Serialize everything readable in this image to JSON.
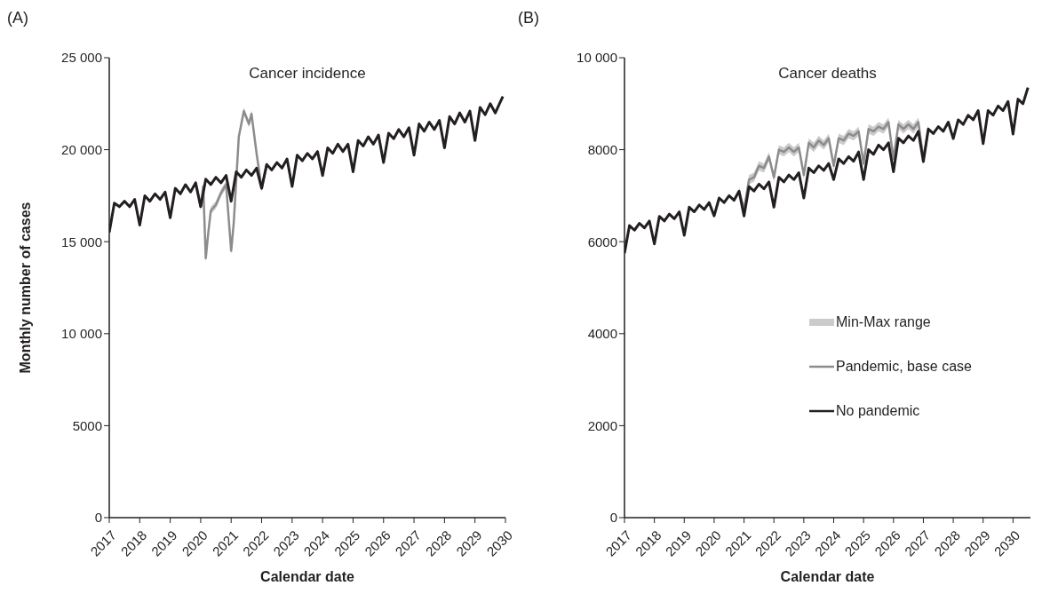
{
  "chart_data": [
    {
      "type": "line",
      "title": "Cancer incidence",
      "annotations": [
        "(A)"
      ],
      "xlabel": "Calendar date",
      "ylabel": "Monthly number of cases",
      "xlim": [
        "2017-01",
        "2030-01"
      ],
      "xticks": [
        "2017",
        "2018",
        "2019",
        "2020",
        "2021",
        "2022",
        "2023",
        "2024",
        "2025",
        "2026",
        "2027",
        "2028",
        "2029",
        "2030"
      ],
      "ylim": [
        0,
        25000
      ],
      "yticks": [
        0,
        {
          "value": 5000,
          "label": "5000"
        },
        {
          "value": 10000,
          "label": "10 000"
        },
        {
          "value": 15000,
          "label": "15 000"
        },
        {
          "value": 20000,
          "label": "20 000"
        },
        {
          "value": 25000,
          "label": "25 000"
        }
      ],
      "grid": false,
      "legend": false,
      "line_style": "solid",
      "series": [
        {
          "color": "#8c8c8c",
          "x": [
            "2019-11",
            "2020-01",
            "2020-02",
            "2020-03",
            "2020-04",
            "2020-05",
            "2020-07",
            "2020-09",
            "2020-11",
            "2021-01",
            "2021-02",
            "2021-04",
            "2021-06",
            "2021-08",
            "2021-09",
            "2021-11",
            "2022-01",
            "2022-03"
          ],
          "values": [
            18200,
            16900,
            18000,
            14100,
            15500,
            16700,
            17000,
            17650,
            18100,
            14500,
            16000,
            20700,
            22100,
            21400,
            21950,
            19800,
            17900,
            19200
          ],
          "lower": [
            18000,
            16700,
            17800,
            13900,
            15300,
            16500,
            16800,
            17450,
            17900,
            14300,
            15800,
            20500,
            21900,
            21200,
            21750,
            19600,
            17700,
            19000
          ],
          "upper": [
            18400,
            17100,
            18200,
            14300,
            15700,
            16900,
            17200,
            17850,
            18300,
            14700,
            16200,
            20900,
            22300,
            21600,
            22150,
            20000,
            18100,
            19400
          ]
        },
        {
          "color": "#231f20",
          "x": [
            "2017-01",
            "2017-03",
            "2017-05",
            "2017-07",
            "2017-09",
            "2017-11",
            "2018-01",
            "2018-03",
            "2018-05",
            "2018-07",
            "2018-09",
            "2018-11",
            "2019-01",
            "2019-03",
            "2019-05",
            "2019-07",
            "2019-09",
            "2019-11",
            "2020-01",
            "2020-03",
            "2020-05",
            "2020-07",
            "2020-09",
            "2020-11",
            "2021-01",
            "2021-03",
            "2021-05",
            "2021-07",
            "2021-09",
            "2021-11",
            "2022-01",
            "2022-03",
            "2022-05",
            "2022-07",
            "2022-09",
            "2022-11",
            "2023-01",
            "2023-03",
            "2023-05",
            "2023-07",
            "2023-09",
            "2023-11",
            "2024-01",
            "2024-03",
            "2024-05",
            "2024-07",
            "2024-09",
            "2024-11",
            "2025-01",
            "2025-03",
            "2025-05",
            "2025-07",
            "2025-09",
            "2025-11",
            "2026-01",
            "2026-03",
            "2026-05",
            "2026-07",
            "2026-09",
            "2026-11",
            "2027-01",
            "2027-03",
            "2027-05",
            "2027-07",
            "2027-09",
            "2027-11",
            "2028-01",
            "2028-03",
            "2028-05",
            "2028-07",
            "2028-09",
            "2028-11",
            "2029-01",
            "2029-03",
            "2029-05",
            "2029-07",
            "2029-09",
            "2029-11",
            "2029-12"
          ],
          "values": [
            15500,
            17100,
            16900,
            17200,
            16900,
            17300,
            15900,
            17500,
            17200,
            17600,
            17300,
            17700,
            16300,
            17900,
            17600,
            18100,
            17700,
            18200,
            16900,
            18400,
            18100,
            18500,
            18200,
            18600,
            17200,
            18800,
            18500,
            18900,
            18600,
            19000,
            17900,
            19200,
            18900,
            19300,
            19000,
            19500,
            18000,
            19700,
            19400,
            19800,
            19500,
            19900,
            18600,
            20100,
            19800,
            20300,
            19900,
            20300,
            18800,
            20500,
            20200,
            20700,
            20300,
            20800,
            19300,
            20900,
            20600,
            21100,
            20700,
            21200,
            19700,
            21400,
            21000,
            21500,
            21100,
            21600,
            20100,
            21800,
            21400,
            22000,
            21500,
            22100,
            20500,
            22300,
            21900,
            22500,
            22000,
            22600,
            22900
          ]
        }
      ]
    },
    {
      "type": "line",
      "title": "Cancer deaths",
      "annotations": [
        "(B)",
        "Min-Max range"
      ],
      "xlabel": "Calendar date",
      "xlim": [
        "2017-01",
        "2030-08"
      ],
      "xticks": [
        "2017",
        "2018",
        "2019",
        "2020",
        "2021",
        "2022",
        "2023",
        "2024",
        "2025",
        "2026",
        "2027",
        "2028",
        "2029",
        "2030"
      ],
      "ylim": [
        0,
        10000
      ],
      "yticks": [
        0,
        2000,
        4000,
        6000,
        8000,
        {
          "value": 10000,
          "label": "10 000"
        }
      ],
      "grid": false,
      "legend": "right",
      "line_style": "solid",
      "series": [
        {
          "name": "Pandemic, base case",
          "color": "#8c8c8c",
          "x": [
            "2020-11",
            "2021-01",
            "2021-03",
            "2021-05",
            "2021-07",
            "2021-09",
            "2021-11",
            "2022-01",
            "2022-03",
            "2022-05",
            "2022-07",
            "2022-09",
            "2022-11",
            "2023-01",
            "2023-03",
            "2023-05",
            "2023-07",
            "2023-09",
            "2023-11",
            "2024-01",
            "2024-03",
            "2024-05",
            "2024-07",
            "2024-09",
            "2024-11",
            "2025-01",
            "2025-03",
            "2025-05",
            "2025-07",
            "2025-09",
            "2025-11",
            "2026-01",
            "2026-03",
            "2026-05",
            "2026-07",
            "2026-09",
            "2026-11",
            "2027-01",
            "2027-03"
          ],
          "values": [
            7100,
            6700,
            7350,
            7400,
            7650,
            7600,
            7850,
            7400,
            8000,
            7950,
            8050,
            7950,
            8050,
            7450,
            8150,
            8050,
            8200,
            8100,
            8250,
            7650,
            8250,
            8200,
            8350,
            8300,
            8400,
            7700,
            8450,
            8400,
            8500,
            8450,
            8600,
            7800,
            8550,
            8450,
            8550,
            8450,
            8600,
            7800,
            8450
          ],
          "lower": [
            7000,
            6600,
            7250,
            7300,
            7550,
            7500,
            7750,
            7300,
            7900,
            7850,
            7950,
            7850,
            7950,
            7350,
            8050,
            7950,
            8100,
            8000,
            8150,
            7550,
            8150,
            8100,
            8250,
            8200,
            8300,
            7600,
            8350,
            8300,
            8400,
            8350,
            8500,
            7700,
            8450,
            8350,
            8450,
            8350,
            8500,
            7700,
            8350
          ],
          "upper": [
            7200,
            6800,
            7450,
            7500,
            7750,
            7700,
            7950,
            7500,
            8100,
            8050,
            8150,
            8050,
            8150,
            7550,
            8250,
            8150,
            8300,
            8200,
            8350,
            7750,
            8350,
            8300,
            8450,
            8400,
            8500,
            7800,
            8550,
            8500,
            8600,
            8550,
            8700,
            7900,
            8650,
            8550,
            8650,
            8550,
            8700,
            7900,
            8550
          ]
        },
        {
          "name": "No pandemic",
          "color": "#231f20",
          "x": [
            "2017-01",
            "2017-03",
            "2017-05",
            "2017-07",
            "2017-09",
            "2017-11",
            "2018-01",
            "2018-03",
            "2018-05",
            "2018-07",
            "2018-09",
            "2018-11",
            "2019-01",
            "2019-03",
            "2019-05",
            "2019-07",
            "2019-09",
            "2019-11",
            "2020-01",
            "2020-03",
            "2020-05",
            "2020-07",
            "2020-09",
            "2020-11",
            "2021-01",
            "2021-03",
            "2021-05",
            "2021-07",
            "2021-09",
            "2021-11",
            "2022-01",
            "2022-03",
            "2022-05",
            "2022-07",
            "2022-09",
            "2022-11",
            "2023-01",
            "2023-03",
            "2023-05",
            "2023-07",
            "2023-09",
            "2023-11",
            "2024-01",
            "2024-03",
            "2024-05",
            "2024-07",
            "2024-09",
            "2024-11",
            "2025-01",
            "2025-03",
            "2025-05",
            "2025-07",
            "2025-09",
            "2025-11",
            "2026-01",
            "2026-03",
            "2026-05",
            "2026-07",
            "2026-09",
            "2026-11",
            "2027-01",
            "2027-03",
            "2027-05",
            "2027-07",
            "2027-09",
            "2027-11",
            "2028-01",
            "2028-03",
            "2028-05",
            "2028-07",
            "2028-09",
            "2028-11",
            "2029-01",
            "2029-03",
            "2029-05",
            "2029-07",
            "2029-09",
            "2029-11",
            "2030-01",
            "2030-03",
            "2030-05",
            "2030-07"
          ],
          "values": [
            5750,
            6350,
            6250,
            6400,
            6300,
            6450,
            5950,
            6550,
            6450,
            6600,
            6500,
            6650,
            6140,
            6750,
            6650,
            6800,
            6700,
            6850,
            6560,
            6950,
            6850,
            7000,
            6900,
            7100,
            6560,
            7200,
            7100,
            7250,
            7150,
            7300,
            6750,
            7400,
            7300,
            7450,
            7350,
            7500,
            6950,
            7600,
            7500,
            7650,
            7550,
            7700,
            7350,
            7800,
            7700,
            7850,
            7750,
            7950,
            7350,
            8000,
            7900,
            8100,
            8000,
            8150,
            7520,
            8250,
            8150,
            8300,
            8200,
            8400,
            7740,
            8450,
            8350,
            8500,
            8400,
            8600,
            8240,
            8650,
            8550,
            8750,
            8650,
            8850,
            8130,
            8850,
            8750,
            8950,
            8850,
            9050,
            8340,
            9100,
            9000,
            9350
          ]
        }
      ]
    }
  ]
}
